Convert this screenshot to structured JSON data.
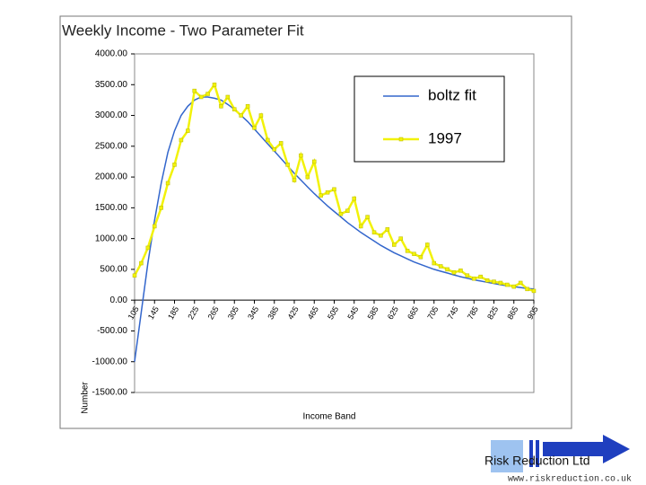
{
  "chart_data": {
    "type": "line",
    "title": "Weekly Income - Two Parameter Fit",
    "x_label": "Income Band",
    "y_label": "Number",
    "categories": [
      "105",
      null,
      null,
      "145",
      null,
      null,
      "185",
      null,
      null,
      "225",
      null,
      null,
      "265",
      null,
      null,
      "305",
      null,
      null,
      "345",
      null,
      null,
      "385",
      null,
      null,
      "425",
      null,
      null,
      "465",
      null,
      null,
      "505",
      null,
      null,
      "545",
      null,
      null,
      "585",
      null,
      null,
      "625",
      null,
      null,
      "665",
      null,
      null,
      "705",
      null,
      null,
      "745",
      null,
      null,
      "785",
      null,
      null,
      "825",
      null,
      null,
      "865",
      null,
      null,
      "905"
    ],
    "series": [
      {
        "name": "boltz fit",
        "color": "#3366cc",
        "markers": false,
        "values": [
          -1000,
          -200,
          600,
          1300,
          1900,
          2400,
          2750,
          3000,
          3150,
          3250,
          3300,
          3300,
          3280,
          3250,
          3180,
          3100,
          3000,
          2900,
          2780,
          2660,
          2540,
          2420,
          2300,
          2180,
          2060,
          1950,
          1840,
          1730,
          1630,
          1530,
          1440,
          1350,
          1260,
          1180,
          1100,
          1030,
          960,
          890,
          830,
          770,
          720,
          670,
          620,
          580,
          540,
          500,
          470,
          440,
          410,
          380,
          355,
          330,
          310,
          290,
          270,
          250,
          235,
          220,
          205,
          190,
          180
        ]
      },
      {
        "name": "1997",
        "color": "#f2f20a",
        "markers": true,
        "values": [
          400,
          600,
          850,
          1200,
          1500,
          1900,
          2200,
          2600,
          2750,
          3400,
          3300,
          3350,
          3500,
          3150,
          3300,
          3100,
          3000,
          3150,
          2800,
          3000,
          2600,
          2450,
          2550,
          2200,
          1950,
          2350,
          2000,
          2250,
          1700,
          1750,
          1800,
          1400,
          1450,
          1650,
          1200,
          1350,
          1100,
          1050,
          1150,
          900,
          1000,
          800,
          750,
          700,
          900,
          600,
          550,
          500,
          450,
          480,
          400,
          350,
          380,
          320,
          300,
          280,
          250,
          220,
          280,
          180,
          150
        ]
      }
    ],
    "ylim": [
      -1500,
      4000
    ],
    "yticks": [
      {
        "value": -1500,
        "label": "-1500.00"
      },
      {
        "value": -1000,
        "label": "-1000.00"
      },
      {
        "value": -500,
        "label": "-500.00"
      },
      {
        "value": 0,
        "label": "0.00"
      },
      {
        "value": 500,
        "label": "500.00"
      },
      {
        "value": 1000,
        "label": "1000.00"
      },
      {
        "value": 1500,
        "label": "1500.00"
      },
      {
        "value": 2000,
        "label": "2000.00"
      },
      {
        "value": 2500,
        "label": "2500.00"
      },
      {
        "value": 3000,
        "label": "3000.00"
      },
      {
        "value": 3500,
        "label": "3500.00"
      },
      {
        "value": 4000,
        "label": "4000.00"
      }
    ],
    "grid": false,
    "legend": "upper right"
  },
  "footer": {
    "company": "Risk Reduction Ltd",
    "url": "www.riskreduction.co.uk"
  }
}
